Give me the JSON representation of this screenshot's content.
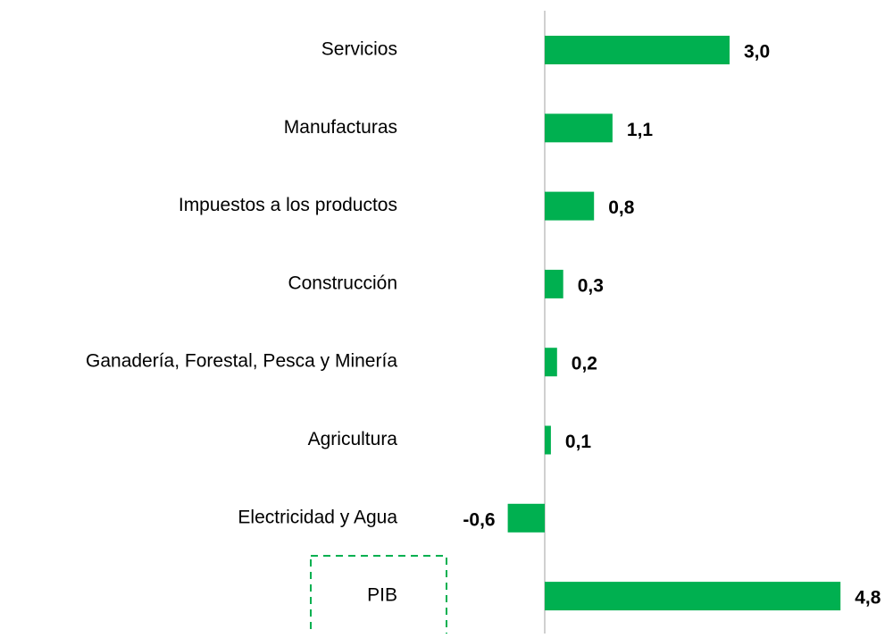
{
  "chart_data": {
    "type": "bar",
    "orientation": "horizontal",
    "categories": [
      "Servicios",
      "Manufacturas",
      "Impuestos a los productos",
      "Construcción",
      "Ganadería, Forestal, Pesca y Minería",
      "Agricultura",
      "Electricidad y Agua",
      "PIB"
    ],
    "values": [
      3.0,
      1.1,
      0.8,
      0.3,
      0.2,
      0.1,
      -0.6,
      4.8
    ],
    "value_labels": [
      "3,0",
      "1,1",
      "0,8",
      "0,3",
      "0,2",
      "0,1",
      "-0,6",
      "4,8"
    ],
    "color": "#00b050"
  }
}
